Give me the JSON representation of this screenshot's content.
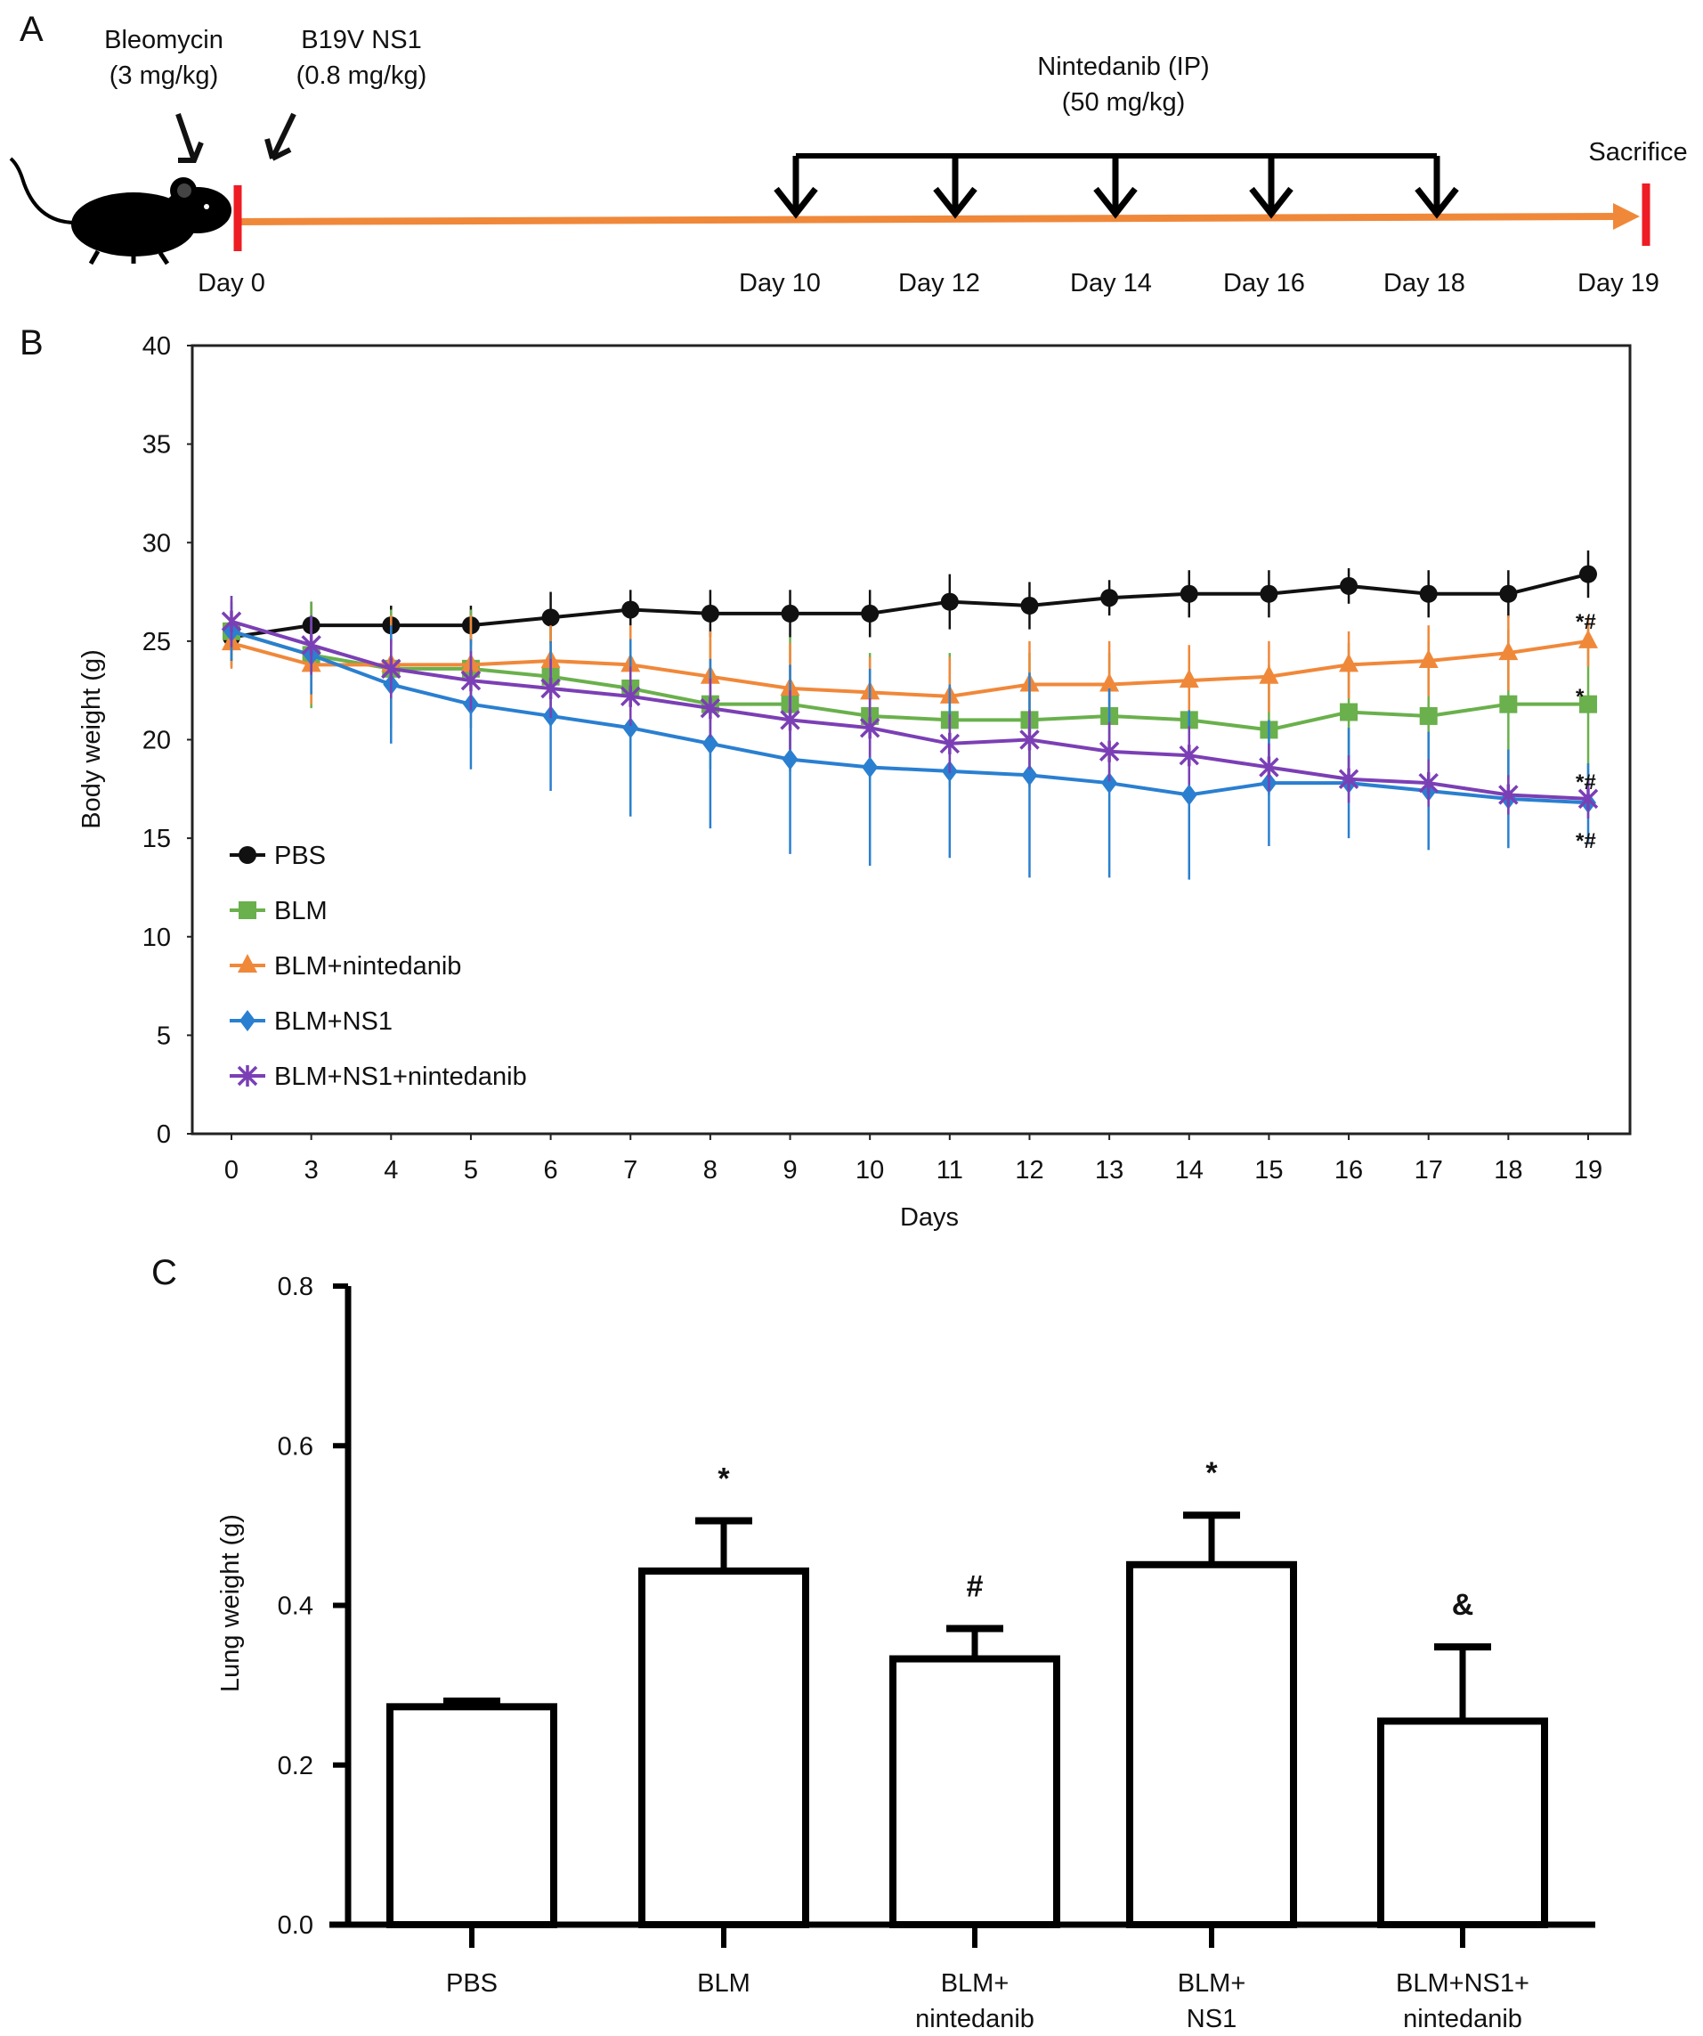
{
  "panel_a": {
    "label": "A",
    "bleomycin": {
      "line1": "Bleomycin",
      "line2": "(3 mg/kg)"
    },
    "ns1": {
      "line1": "B19V NS1",
      "line2": "(0.8 mg/kg)"
    },
    "nintedanib": {
      "line1": "Nintedanib (IP)",
      "line2": "(50 mg/kg)"
    },
    "sacrifice": "Sacrifice",
    "day_labels": [
      "Day 0",
      "Day 10",
      "Day 12",
      "Day 14",
      "Day 16",
      "Day 18",
      "Day 19"
    ],
    "colors": {
      "timeline": "#f0883a",
      "marker": "#ee1c24"
    }
  },
  "chart_data": [
    {
      "type": "line",
      "panel_label": "B",
      "xlabel": "Days",
      "ylabel": "Body weight (g)",
      "ylim": [
        0,
        40
      ],
      "yticks": [
        0,
        5,
        10,
        15,
        20,
        25,
        30,
        35,
        40
      ],
      "categories": [
        "0",
        "3",
        "4",
        "5",
        "6",
        "7",
        "8",
        "9",
        "10",
        "11",
        "12",
        "13",
        "14",
        "15",
        "16",
        "17",
        "18",
        "19"
      ],
      "legend_position": "bottom-left",
      "grid": false,
      "series": [
        {
          "name": "PBS",
          "color": "#111111",
          "marker": "circle",
          "values": [
            25.2,
            25.8,
            25.8,
            25.8,
            26.2,
            26.6,
            26.4,
            26.4,
            26.4,
            27.0,
            26.8,
            27.2,
            27.4,
            27.4,
            27.8,
            27.4,
            27.4,
            28.4
          ],
          "errors": [
            1.2,
            1.2,
            1.0,
            1.0,
            1.3,
            1.0,
            1.2,
            1.2,
            1.2,
            1.4,
            1.2,
            0.9,
            1.2,
            1.2,
            0.9,
            1.2,
            1.2,
            1.2
          ]
        },
        {
          "name": "BLM",
          "color": "#6ab04c",
          "marker": "square",
          "values": [
            25.5,
            24.3,
            23.6,
            23.6,
            23.2,
            22.6,
            21.8,
            21.8,
            21.2,
            21.0,
            21.0,
            21.2,
            21.0,
            20.5,
            21.4,
            21.2,
            21.8,
            21.8
          ],
          "errors": [
            1.8,
            2.7,
            3.0,
            3.0,
            2.5,
            3.0,
            3.3,
            3.4,
            3.2,
            3.4,
            3.4,
            3.2,
            3.5,
            3.3,
            3.5,
            3.8,
            3.8,
            4.0
          ],
          "annotation": "*"
        },
        {
          "name": "BLM+nintedanib",
          "color": "#f0883a",
          "marker": "triangle",
          "values": [
            24.9,
            23.8,
            23.8,
            23.8,
            24.0,
            23.8,
            23.2,
            22.6,
            22.4,
            22.2,
            22.8,
            22.8,
            23.0,
            23.2,
            23.8,
            24.0,
            24.4,
            25.0
          ],
          "errors": [
            1.3,
            2.0,
            2.5,
            2.5,
            1.8,
            2.0,
            2.3,
            2.3,
            1.8,
            2.0,
            2.2,
            2.2,
            1.8,
            1.8,
            1.7,
            1.8,
            1.9,
            1.3
          ],
          "annotation": "*#"
        },
        {
          "name": "BLM+NS1",
          "color": "#2a7fd0",
          "marker": "diamond",
          "values": [
            25.5,
            24.3,
            22.8,
            21.8,
            21.2,
            20.6,
            19.8,
            19.0,
            18.6,
            18.4,
            18.2,
            17.8,
            17.2,
            17.8,
            17.8,
            17.4,
            17.0,
            16.8
          ],
          "errors": [
            1.5,
            2.0,
            3.0,
            3.3,
            3.8,
            4.5,
            4.3,
            4.8,
            5.0,
            4.4,
            5.2,
            4.8,
            4.3,
            3.2,
            2.8,
            3.0,
            2.5,
            2.0
          ],
          "annotation": "*#"
        },
        {
          "name": "BLM+NS1+nintedanib",
          "color": "#7b3fb5",
          "marker": "star",
          "values": [
            26.0,
            24.8,
            23.6,
            23.0,
            22.6,
            22.2,
            21.6,
            21.0,
            20.6,
            19.8,
            20.0,
            19.4,
            19.2,
            18.6,
            18.0,
            17.8,
            17.2,
            17.0
          ],
          "errors": [
            1.3,
            1.5,
            1.5,
            1.5,
            1.5,
            1.5,
            1.5,
            1.5,
            1.5,
            1.5,
            1.5,
            1.5,
            1.5,
            1.2,
            1.2,
            1.2,
            1.0,
            1.0
          ],
          "annotation": "*#"
        }
      ]
    },
    {
      "type": "bar",
      "panel_label": "C",
      "xlabel": "",
      "ylabel": "Lung weight (g)",
      "ylim": [
        0,
        0.8
      ],
      "yticks": [
        "0.0",
        "0.2",
        "0.4",
        "0.6",
        "0.8"
      ],
      "categories": [
        [
          "PBS"
        ],
        [
          "BLM"
        ],
        [
          "BLM+",
          "nintedanib"
        ],
        [
          "BLM+",
          "NS1"
        ],
        [
          "BLM+NS1+",
          "nintedanib"
        ]
      ],
      "values": [
        0.273,
        0.443,
        0.333,
        0.451,
        0.255
      ],
      "errors": [
        0.007,
        0.063,
        0.038,
        0.062,
        0.093
      ],
      "annotations": [
        "",
        "*",
        "#",
        "*",
        "&"
      ]
    }
  ]
}
